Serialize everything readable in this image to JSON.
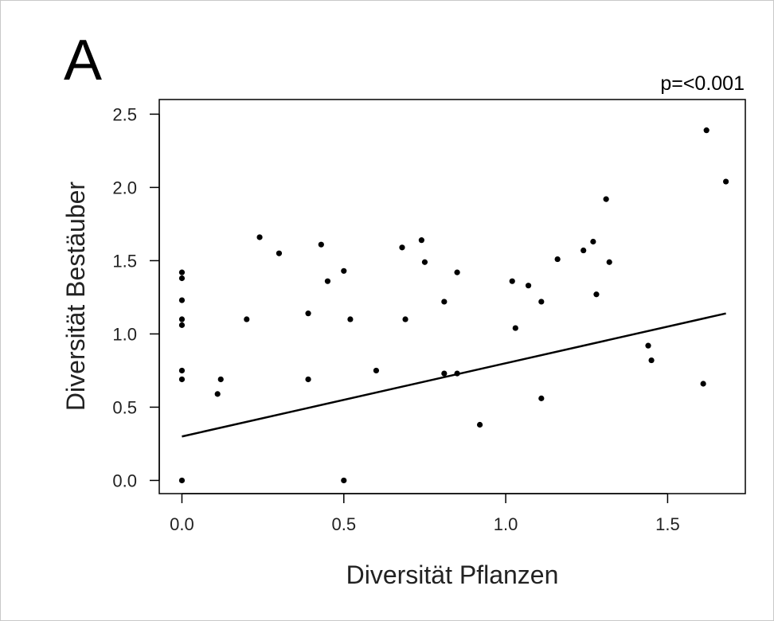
{
  "panel_label": "A",
  "annotation": "p=<0.001",
  "chart_data": {
    "type": "scatter",
    "title": "",
    "xlabel": "Diversität Pflanzen",
    "ylabel": "Diversität Bestäuber",
    "xlim": [
      -0.07,
      1.74
    ],
    "ylim": [
      -0.09,
      2.6
    ],
    "xticks": [
      0.0,
      0.5,
      1.0,
      1.5
    ],
    "xtick_labels": [
      "0.0",
      "0.5",
      "1.0",
      "1.5"
    ],
    "yticks": [
      0.0,
      0.5,
      1.0,
      1.5,
      2.0,
      2.5
    ],
    "ytick_labels": [
      "0.0",
      "0.5",
      "1.0",
      "1.5",
      "2.0",
      "2.5"
    ],
    "grid": false,
    "points": [
      {
        "x": 0.0,
        "y": 0.0
      },
      {
        "x": 0.0,
        "y": 0.69
      },
      {
        "x": 0.0,
        "y": 0.75
      },
      {
        "x": 0.0,
        "y": 1.06
      },
      {
        "x": 0.0,
        "y": 1.1
      },
      {
        "x": 0.0,
        "y": 1.23
      },
      {
        "x": 0.0,
        "y": 1.38
      },
      {
        "x": 0.0,
        "y": 1.42
      },
      {
        "x": 0.11,
        "y": 0.59
      },
      {
        "x": 0.12,
        "y": 0.69
      },
      {
        "x": 0.2,
        "y": 1.1
      },
      {
        "x": 0.24,
        "y": 1.66
      },
      {
        "x": 0.3,
        "y": 1.55
      },
      {
        "x": 0.39,
        "y": 1.14
      },
      {
        "x": 0.39,
        "y": 0.69
      },
      {
        "x": 0.43,
        "y": 1.61
      },
      {
        "x": 0.45,
        "y": 1.36
      },
      {
        "x": 0.5,
        "y": 1.43
      },
      {
        "x": 0.5,
        "y": 0.0
      },
      {
        "x": 0.52,
        "y": 1.1
      },
      {
        "x": 0.6,
        "y": 0.75
      },
      {
        "x": 0.68,
        "y": 1.59
      },
      {
        "x": 0.69,
        "y": 1.1
      },
      {
        "x": 0.74,
        "y": 1.64
      },
      {
        "x": 0.75,
        "y": 1.49
      },
      {
        "x": 0.81,
        "y": 1.22
      },
      {
        "x": 0.81,
        "y": 0.73
      },
      {
        "x": 0.85,
        "y": 1.42
      },
      {
        "x": 0.85,
        "y": 0.73
      },
      {
        "x": 0.92,
        "y": 0.38
      },
      {
        "x": 1.02,
        "y": 1.36
      },
      {
        "x": 1.03,
        "y": 1.04
      },
      {
        "x": 1.07,
        "y": 1.33
      },
      {
        "x": 1.11,
        "y": 1.22
      },
      {
        "x": 1.11,
        "y": 0.56
      },
      {
        "x": 1.16,
        "y": 1.51
      },
      {
        "x": 1.24,
        "y": 1.57
      },
      {
        "x": 1.27,
        "y": 1.63
      },
      {
        "x": 1.28,
        "y": 1.27
      },
      {
        "x": 1.31,
        "y": 1.92
      },
      {
        "x": 1.32,
        "y": 1.49
      },
      {
        "x": 1.44,
        "y": 0.92
      },
      {
        "x": 1.45,
        "y": 0.82
      },
      {
        "x": 1.61,
        "y": 0.66
      },
      {
        "x": 1.62,
        "y": 2.39
      },
      {
        "x": 1.68,
        "y": 2.04
      }
    ],
    "fit_line": {
      "x": [
        0.0,
        1.68
      ],
      "y": [
        0.3,
        1.14
      ]
    }
  }
}
